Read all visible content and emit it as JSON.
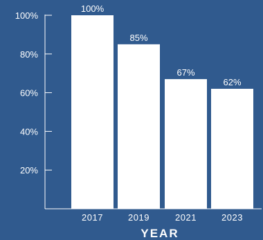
{
  "chart_data": {
    "type": "bar",
    "categories": [
      "2017",
      "2019",
      "2021",
      "2023"
    ],
    "values": [
      100,
      85,
      67,
      62
    ],
    "value_labels": [
      "100%",
      "85%",
      "67%",
      "62%"
    ],
    "ylim": [
      0,
      100
    ],
    "yticks": [
      20,
      40,
      60,
      80,
      100
    ],
    "ytick_labels": [
      "20%",
      "40%",
      "60%",
      "80%",
      "100%"
    ],
    "xlabel": "YEAR",
    "ylabel": "",
    "grid": false,
    "colors": {
      "background": "#305a8e",
      "bar": "#ffffff",
      "axis": "#ffffff",
      "text": "#ffffff"
    }
  }
}
